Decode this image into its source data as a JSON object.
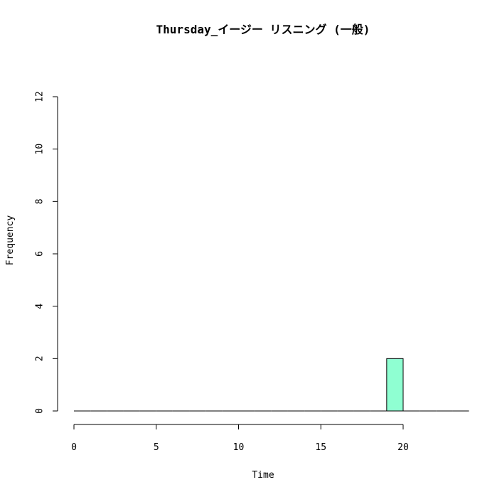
{
  "chart_data": {
    "type": "bar",
    "subtype": "histogram",
    "title": "Thursday_イージー リスニング (一般)",
    "xlabel": "Time",
    "ylabel": "Frequency",
    "xlim": [
      0,
      24
    ],
    "ylim": [
      0,
      12
    ],
    "x_ticks": [
      "0",
      "5",
      "10",
      "15",
      "20"
    ],
    "y_ticks": [
      "0",
      "2",
      "4",
      "6",
      "8",
      "10",
      "12"
    ],
    "bin_width": 1,
    "bins": [
      {
        "start": 0,
        "end": 1,
        "value": 0
      },
      {
        "start": 1,
        "end": 2,
        "value": 0
      },
      {
        "start": 2,
        "end": 3,
        "value": 0
      },
      {
        "start": 3,
        "end": 4,
        "value": 0
      },
      {
        "start": 4,
        "end": 5,
        "value": 0
      },
      {
        "start": 5,
        "end": 6,
        "value": 0
      },
      {
        "start": 6,
        "end": 7,
        "value": 0
      },
      {
        "start": 7,
        "end": 8,
        "value": 0
      },
      {
        "start": 8,
        "end": 9,
        "value": 0
      },
      {
        "start": 9,
        "end": 10,
        "value": 0
      },
      {
        "start": 10,
        "end": 11,
        "value": 0
      },
      {
        "start": 11,
        "end": 12,
        "value": 0
      },
      {
        "start": 12,
        "end": 13,
        "value": 0
      },
      {
        "start": 13,
        "end": 14,
        "value": 0
      },
      {
        "start": 14,
        "end": 15,
        "value": 0
      },
      {
        "start": 15,
        "end": 16,
        "value": 0
      },
      {
        "start": 16,
        "end": 17,
        "value": 0
      },
      {
        "start": 17,
        "end": 18,
        "value": 0
      },
      {
        "start": 18,
        "end": 19,
        "value": 0
      },
      {
        "start": 19,
        "end": 20,
        "value": 2
      },
      {
        "start": 20,
        "end": 21,
        "value": 0
      },
      {
        "start": 21,
        "end": 22,
        "value": 0
      },
      {
        "start": 22,
        "end": 23,
        "value": 0
      },
      {
        "start": 23,
        "end": 24,
        "value": 0
      }
    ],
    "bar_color": "#8fffd2",
    "line_color": "#000000",
    "grid": false
  }
}
